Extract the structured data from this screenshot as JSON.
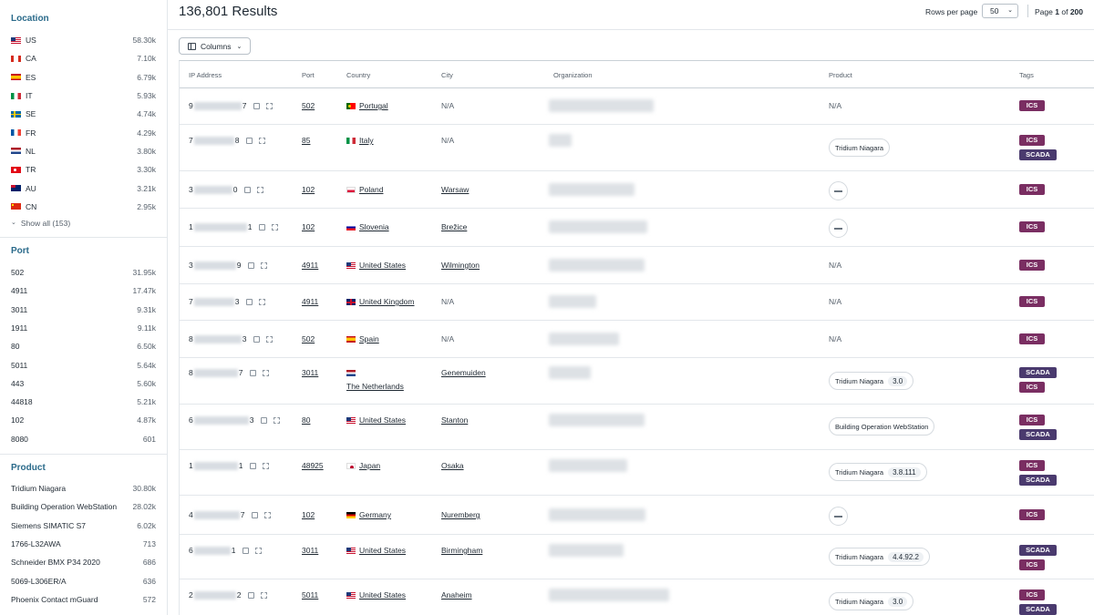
{
  "sidebar": {
    "location": {
      "title": "Location",
      "items": [
        {
          "label": "US",
          "count": "58.30k",
          "flag": "us"
        },
        {
          "label": "CA",
          "count": "7.10k",
          "flag": "ca"
        },
        {
          "label": "ES",
          "count": "6.79k",
          "flag": "es"
        },
        {
          "label": "IT",
          "count": "5.93k",
          "flag": "it"
        },
        {
          "label": "SE",
          "count": "4.74k",
          "flag": "se"
        },
        {
          "label": "FR",
          "count": "4.29k",
          "flag": "fr"
        },
        {
          "label": "NL",
          "count": "3.80k",
          "flag": "nl"
        },
        {
          "label": "TR",
          "count": "3.30k",
          "flag": "tr"
        },
        {
          "label": "AU",
          "count": "3.21k",
          "flag": "au"
        },
        {
          "label": "CN",
          "count": "2.95k",
          "flag": "cn"
        }
      ],
      "show_all": "Show all (153)"
    },
    "port": {
      "title": "Port",
      "items": [
        {
          "label": "502",
          "count": "31.95k"
        },
        {
          "label": "4911",
          "count": "17.47k"
        },
        {
          "label": "3011",
          "count": "9.31k"
        },
        {
          "label": "1911",
          "count": "9.11k"
        },
        {
          "label": "80",
          "count": "6.50k"
        },
        {
          "label": "5011",
          "count": "5.64k"
        },
        {
          "label": "443",
          "count": "5.60k"
        },
        {
          "label": "44818",
          "count": "5.21k"
        },
        {
          "label": "102",
          "count": "4.87k"
        },
        {
          "label": "8080",
          "count": "601"
        }
      ]
    },
    "product": {
      "title": "Product",
      "items": [
        {
          "label": "Tridium Niagara",
          "count": "30.80k"
        },
        {
          "label": "Building Operation WebStation",
          "count": "28.02k"
        },
        {
          "label": "Siemens SIMATIC S7",
          "count": "6.02k"
        },
        {
          "label": "1766-L32AWA",
          "count": "713"
        },
        {
          "label": "Schneider BMX P34 2020",
          "count": "686"
        },
        {
          "label": "5069-L306ER/A",
          "count": "636"
        },
        {
          "label": "Phoenix Contact mGuard",
          "count": "572"
        }
      ]
    }
  },
  "header": {
    "results_count": "136,801",
    "results_label": "Results",
    "rows_per_page_label": "Rows per page",
    "rows_per_page_value": "50",
    "page_label": "Page",
    "page_current": "1",
    "page_of": "of",
    "page_total": "200"
  },
  "toolbar": {
    "columns_label": "Columns"
  },
  "table": {
    "columns": [
      "IP Address",
      "Port",
      "Country",
      "City",
      "Organization",
      "Product",
      "Tags"
    ],
    "rows": [
      {
        "ip_start": "9",
        "ip_end": "7",
        "port": "502",
        "flag": "pt",
        "country": "Portugal",
        "city": "N/A",
        "city_link": false,
        "product": "N/A",
        "product_type": "text",
        "tags": [
          "ICS"
        ]
      },
      {
        "ip_start": "7",
        "ip_end": "8",
        "port": "85",
        "flag": "it",
        "country": "Italy",
        "city": "N/A",
        "city_link": false,
        "product": "Tridium Niagara",
        "product_type": "pill",
        "tags": [
          "ICS",
          "SCADA"
        ]
      },
      {
        "ip_start": "3",
        "ip_end": "0",
        "port": "102",
        "flag": "pl",
        "country": "Poland",
        "city": "Warsaw",
        "city_link": true,
        "product": "",
        "product_type": "icon",
        "tags": [
          "ICS"
        ]
      },
      {
        "ip_start": "1",
        "ip_end": "1",
        "port": "102",
        "flag": "si",
        "country": "Slovenia",
        "city": "Brežice",
        "city_link": true,
        "product": "",
        "product_type": "icon",
        "tags": [
          "ICS"
        ]
      },
      {
        "ip_start": "3",
        "ip_end": "9",
        "port": "4911",
        "flag": "us",
        "country": "United States",
        "city": "Wilmington",
        "city_link": true,
        "product": "N/A",
        "product_type": "text",
        "tags": [
          "ICS"
        ]
      },
      {
        "ip_start": "7",
        "ip_end": "3",
        "port": "4911",
        "flag": "gb",
        "country": "United Kingdom",
        "city": "N/A",
        "city_link": false,
        "product": "N/A",
        "product_type": "text",
        "tags": [
          "ICS"
        ]
      },
      {
        "ip_start": "8",
        "ip_end": "3",
        "port": "502",
        "flag": "es",
        "country": "Spain",
        "city": "N/A",
        "city_link": false,
        "product": "N/A",
        "product_type": "text",
        "tags": [
          "ICS"
        ]
      },
      {
        "ip_start": "8",
        "ip_end": "7",
        "port": "3011",
        "flag": "nl",
        "country": "The Netherlands",
        "city": "Genemuiden",
        "city_link": true,
        "product": "Tridium Niagara",
        "version": "3.0",
        "product_type": "pill",
        "tags": [
          "SCADA",
          "ICS"
        ]
      },
      {
        "ip_start": "6",
        "ip_end": "3",
        "port": "80",
        "flag": "us",
        "country": "United States",
        "city": "Stanton",
        "city_link": true,
        "product": "Building Operation WebStation",
        "product_type": "pill",
        "tags": [
          "ICS",
          "SCADA"
        ]
      },
      {
        "ip_start": "1",
        "ip_end": "1",
        "port": "48925",
        "flag": "jp",
        "country": "Japan",
        "city": "Osaka",
        "city_link": true,
        "product": "Tridium Niagara",
        "version": "3.8.111",
        "product_type": "pill",
        "tags": [
          "ICS",
          "SCADA"
        ]
      },
      {
        "ip_start": "4",
        "ip_end": "7",
        "port": "102",
        "flag": "de",
        "country": "Germany",
        "city": "Nuremberg",
        "city_link": true,
        "product": "",
        "product_type": "icon",
        "tags": [
          "ICS"
        ]
      },
      {
        "ip_start": "6",
        "ip_end": "1",
        "port": "3011",
        "flag": "us",
        "country": "United States",
        "city": "Birmingham",
        "city_link": true,
        "product": "Tridium Niagara",
        "version": "4.4.92.2",
        "product_type": "pill",
        "tags": [
          "SCADA",
          "ICS"
        ]
      },
      {
        "ip_start": "2",
        "ip_end": "2",
        "port": "5011",
        "flag": "us",
        "country": "United States",
        "city": "Anaheim",
        "city_link": true,
        "product": "Tridium Niagara",
        "version": "3.0",
        "product_type": "pill",
        "tags": [
          "ICS",
          "SCADA"
        ]
      }
    ]
  },
  "colors": {
    "accent": "#2a6a8a",
    "tag_ics": "#7a2e62",
    "tag_scada": "#4a3a6e"
  }
}
